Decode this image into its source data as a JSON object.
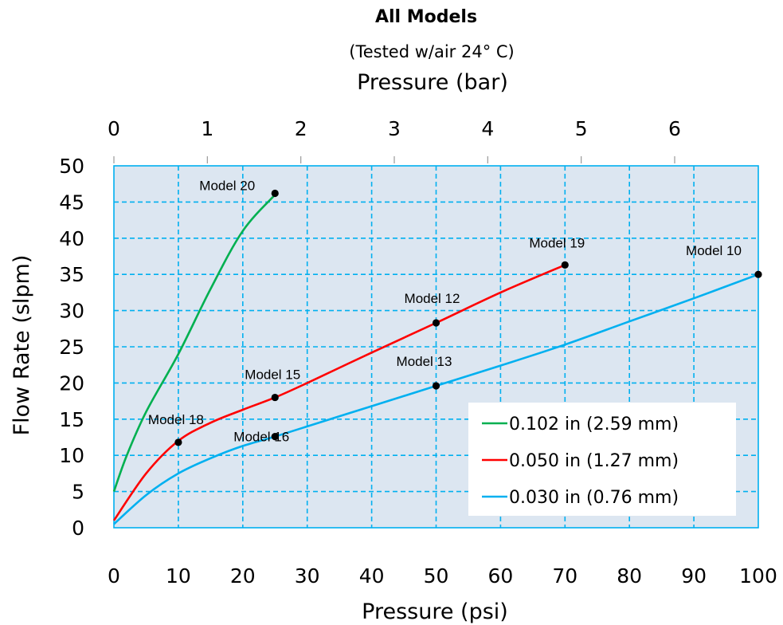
{
  "chart_data": {
    "type": "line",
    "title": "All Models",
    "subtitle": "(Tested w/air 24° C)",
    "top_xlabel": "Pressure (bar)",
    "xlabel": "Pressure (psi)",
    "ylabel": "Flow Rate (slpm)",
    "xlim": [
      0,
      100
    ],
    "ylim": [
      0,
      50
    ],
    "top_xlim_bar": [
      0,
      6.895
    ],
    "x_ticks": [
      "0",
      "10",
      "20",
      "30",
      "40",
      "50",
      "60",
      "70",
      "80",
      "90",
      "100"
    ],
    "y_ticks": [
      "0",
      "5",
      "10",
      "15",
      "20",
      "25",
      "30",
      "35",
      "40",
      "45",
      "50"
    ],
    "top_x_ticks": [
      "0",
      "1",
      "2",
      "3",
      "4",
      "5",
      "6"
    ],
    "grid": true,
    "plot_background": "#dce6f1",
    "grid_color": "#00b0f0",
    "legend_position": "bottom-right",
    "series": [
      {
        "name": "0.102 in (2.59 mm)",
        "color": "#00b050",
        "x": [
          0,
          2,
          5,
          10,
          15,
          20,
          25
        ],
        "y": [
          5,
          10,
          16,
          24,
          33,
          41,
          46
        ]
      },
      {
        "name": "0.050 in (1.27 mm)",
        "color": "#ff0000",
        "x": [
          0,
          5,
          10,
          15,
          20,
          25,
          30,
          40,
          50,
          60,
          70
        ],
        "y": [
          1,
          7.5,
          12,
          14.5,
          16.3,
          18,
          20,
          24.2,
          28.3,
          32.5,
          36.3
        ]
      },
      {
        "name": "0.030 in (0.76 mm)",
        "color": "#00b0f0",
        "x": [
          0,
          5,
          10,
          15,
          20,
          25,
          30,
          40,
          50,
          60,
          70,
          80,
          90,
          100
        ],
        "y": [
          0.5,
          4.5,
          7.5,
          9.6,
          11.3,
          12.6,
          14,
          16.8,
          19.6,
          22.4,
          25.3,
          28.5,
          31.7,
          35
        ]
      }
    ],
    "points": [
      {
        "label": "Model 20",
        "x": 25,
        "y": 46.2
      },
      {
        "label": "Model 19",
        "x": 70,
        "y": 36.3
      },
      {
        "label": "Model 10",
        "x": 100,
        "y": 35
      },
      {
        "label": "Model 12",
        "x": 50,
        "y": 28.3
      },
      {
        "label": "Model 13",
        "x": 50,
        "y": 19.6
      },
      {
        "label": "Model 15",
        "x": 25,
        "y": 18
      },
      {
        "label": "Model 18",
        "x": 10,
        "y": 11.8
      },
      {
        "label": "Model 16",
        "x": 25,
        "y": 12.6
      }
    ]
  }
}
